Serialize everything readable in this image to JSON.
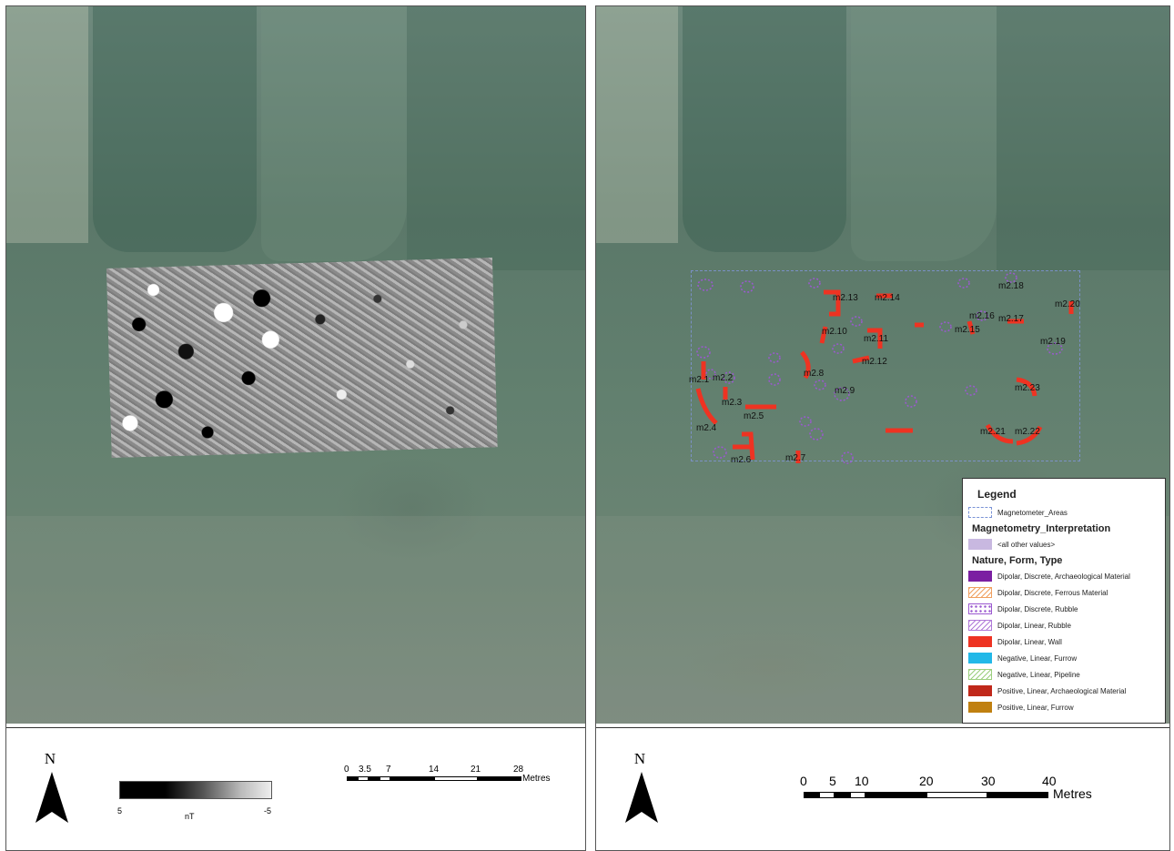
{
  "left_panel": {
    "colour_ramp": {
      "min_label": "5",
      "unit_label": "nT",
      "max_label": "-5"
    },
    "north_label": "N",
    "scale": {
      "ticks": [
        "0",
        "3.5",
        "7",
        "14",
        "21",
        "28"
      ],
      "unit": "Metres"
    }
  },
  "right_panel": {
    "north_label": "N",
    "scale": {
      "ticks": [
        "0",
        "5",
        "10",
        "20",
        "30",
        "40"
      ],
      "unit": "Metres"
    },
    "anomaly_labels": [
      "m2.1",
      "m2.2",
      "m2.3",
      "m2.4",
      "m2.5",
      "m2.6",
      "m2.7",
      "m2.8",
      "m2.9",
      "m2.10",
      "m2.11",
      "m2.12",
      "m2.13",
      "m2.14",
      "m2.15",
      "m2.16",
      "m2.17",
      "m2.18",
      "m2.19",
      "m2.20",
      "m2.21",
      "m2.22",
      "m2.23"
    ],
    "legend": {
      "title": "Legend",
      "areas_label": "Magnetometer_Areas",
      "interpretation_title": "Magnetometry_Interpretation",
      "other_values_label": "<all other values>",
      "type_title": "Nature, Form, Type",
      "entries": [
        {
          "label": "Dipolar, Discrete, Archaeological Material",
          "color": "#7b1fa2",
          "pattern": "solid"
        },
        {
          "label": "Dipolar, Discrete, Ferrous Material",
          "color": "#f0a060",
          "pattern": "hatch"
        },
        {
          "label": "Dipolar, Discrete, Rubble",
          "color": "#9b59d0",
          "pattern": "dots"
        },
        {
          "label": "Dipolar, Linear, Rubble",
          "color": "#b07ad8",
          "pattern": "hatch"
        },
        {
          "label": "Dipolar, Linear, Wall",
          "color": "#ee3322",
          "pattern": "solid"
        },
        {
          "label": "Negative, Linear, Furrow",
          "color": "#22b8e8",
          "pattern": "solid"
        },
        {
          "label": "Negative, Linear, Pipeline",
          "color": "#9ccf7f",
          "pattern": "hatch"
        },
        {
          "label": "Positive, Linear, Archaeological Material",
          "color": "#c0281a",
          "pattern": "solid"
        },
        {
          "label": "Positive, Linear, Furrow",
          "color": "#c08010",
          "pattern": "solid"
        }
      ],
      "other_values_color": "#c8b8e0"
    }
  }
}
